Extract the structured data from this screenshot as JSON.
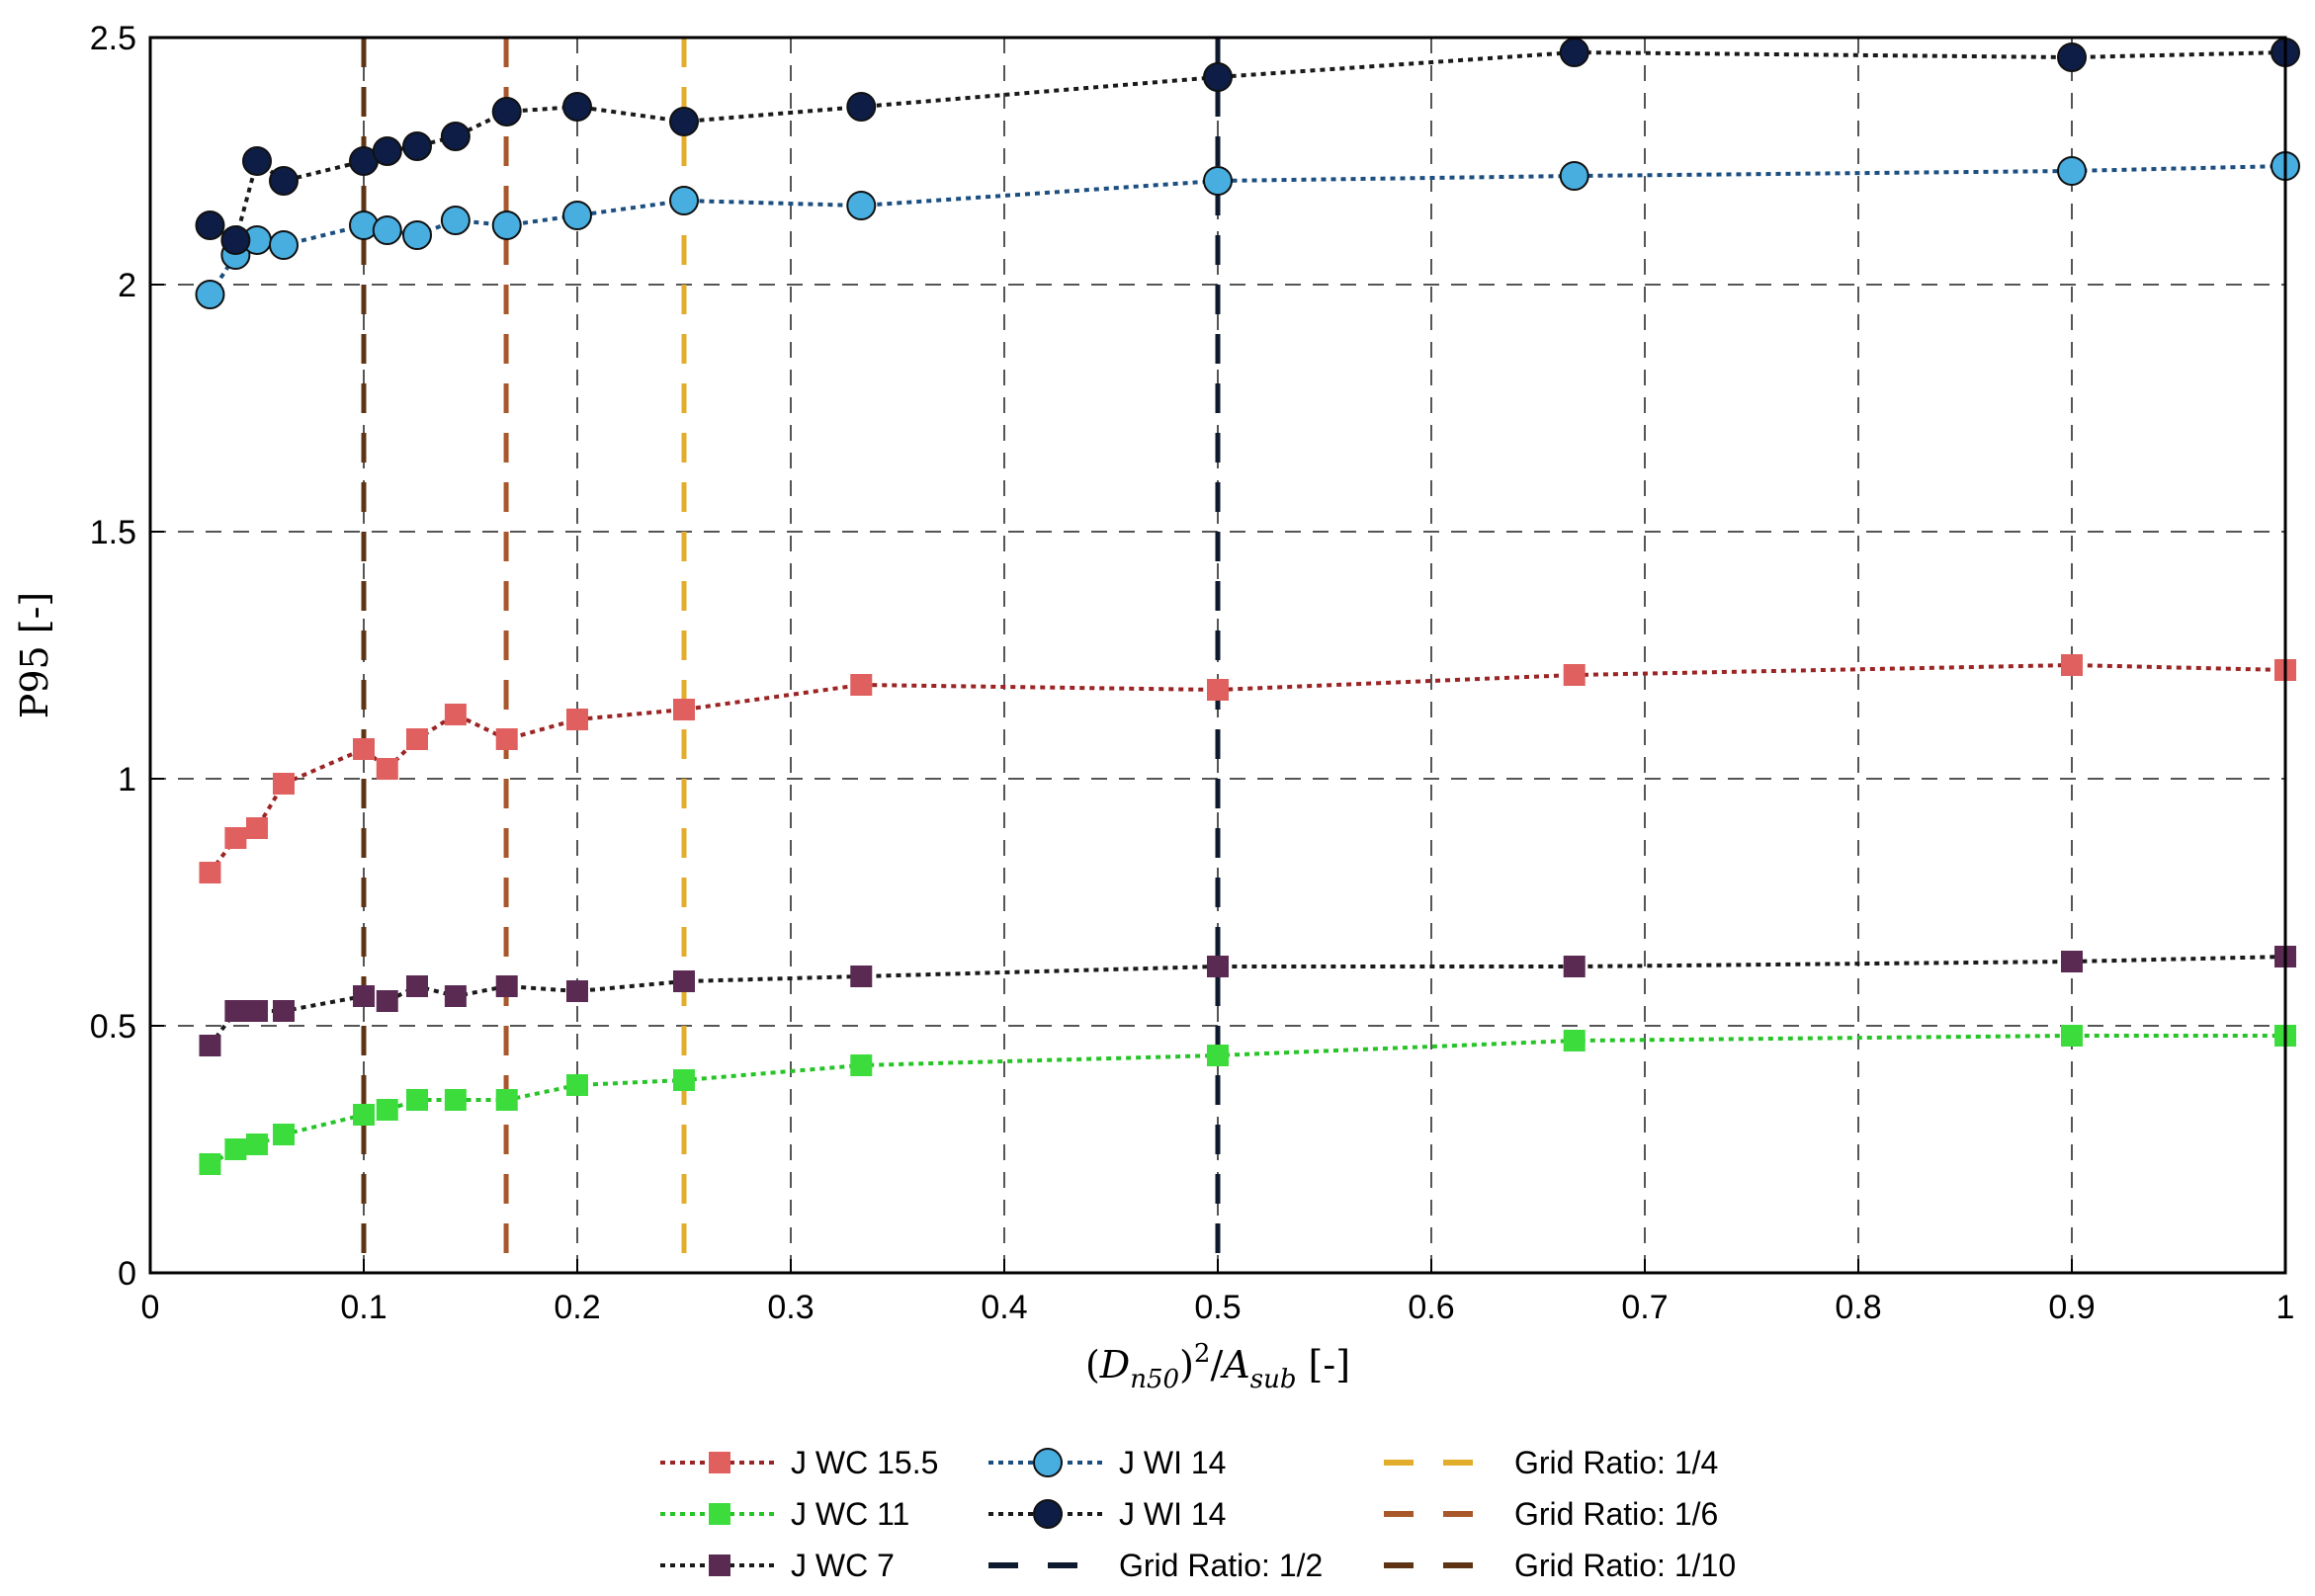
{
  "chart_data": {
    "type": "line",
    "xlabel": "(D_n50)^2/A_sub [-]",
    "ylabel": "P95 [-]",
    "xlim": [
      0,
      1
    ],
    "ylim": [
      0,
      2.5
    ],
    "grid": true,
    "legend_position": "bottom",
    "x_ticks": [
      0,
      0.1,
      0.2,
      0.3,
      0.4,
      0.5,
      0.6,
      0.7,
      0.8,
      0.9,
      1
    ],
    "x_tick_labels": [
      "0",
      "0.1",
      "0.2",
      "0.3",
      "0.4",
      "0.5",
      "0.6",
      "0.7",
      "0.8",
      "0.9",
      "1"
    ],
    "y_ticks": [
      0,
      0.5,
      1,
      1.5,
      2,
      2.5
    ],
    "y_tick_labels": [
      "0",
      "0.5",
      "1",
      "1.5",
      "2",
      "2.5"
    ],
    "x": [
      0.028,
      0.04,
      0.05,
      0.0625,
      0.1,
      0.111,
      0.125,
      0.143,
      0.167,
      0.2,
      0.25,
      0.333,
      0.5,
      0.667,
      0.9,
      1.0
    ],
    "series": [
      {
        "name": "J WC 15.5",
        "marker": "square",
        "color": "#e05f5f",
        "line_color": "#9b2424",
        "values": [
          0.81,
          0.88,
          0.9,
          0.99,
          1.06,
          1.02,
          1.08,
          1.13,
          1.08,
          1.12,
          1.14,
          1.19,
          1.18,
          1.21,
          1.23,
          1.22
        ]
      },
      {
        "name": "J WC 11",
        "marker": "square",
        "color": "#3ddc3d",
        "line_color": "#27c427",
        "values": [
          0.22,
          0.25,
          0.26,
          0.28,
          0.32,
          0.33,
          0.35,
          0.35,
          0.35,
          0.38,
          0.39,
          0.42,
          0.44,
          0.47,
          0.48,
          0.48
        ]
      },
      {
        "name": "J WC 7",
        "marker": "square",
        "color": "#5a2a52",
        "line_color": "#1a1a1a",
        "values": [
          0.46,
          0.53,
          0.53,
          0.53,
          0.56,
          0.55,
          0.58,
          0.56,
          0.58,
          0.57,
          0.59,
          0.6,
          0.62,
          0.62,
          0.63,
          0.64
        ]
      },
      {
        "name": "J WI 14",
        "marker": "circle",
        "color": "#48aee0",
        "line_color": "#1c4f80",
        "values": [
          1.98,
          2.06,
          2.09,
          2.08,
          2.12,
          2.11,
          2.1,
          2.13,
          2.12,
          2.14,
          2.17,
          2.16,
          2.21,
          2.22,
          2.23,
          2.24
        ]
      },
      {
        "name": "J WI 14",
        "marker": "circle",
        "color": "#0e1d45",
        "line_color": "#1a1a1a",
        "values": [
          2.12,
          2.09,
          2.25,
          2.21,
          2.25,
          2.27,
          2.28,
          2.3,
          2.35,
          2.36,
          2.33,
          2.36,
          2.42,
          2.47,
          2.46,
          2.47
        ]
      }
    ],
    "vlines": [
      {
        "name": "Grid Ratio: 1/2",
        "x": 0.5,
        "color": "#0e1a2e"
      },
      {
        "name": "Grid Ratio: 1/4",
        "x": 0.25,
        "color": "#e3ad2c"
      },
      {
        "name": "Grid Ratio: 1/6",
        "x": 0.1667,
        "color": "#a8582a"
      },
      {
        "name": "Grid Ratio: 1/10",
        "x": 0.1,
        "color": "#5e3414"
      }
    ]
  }
}
